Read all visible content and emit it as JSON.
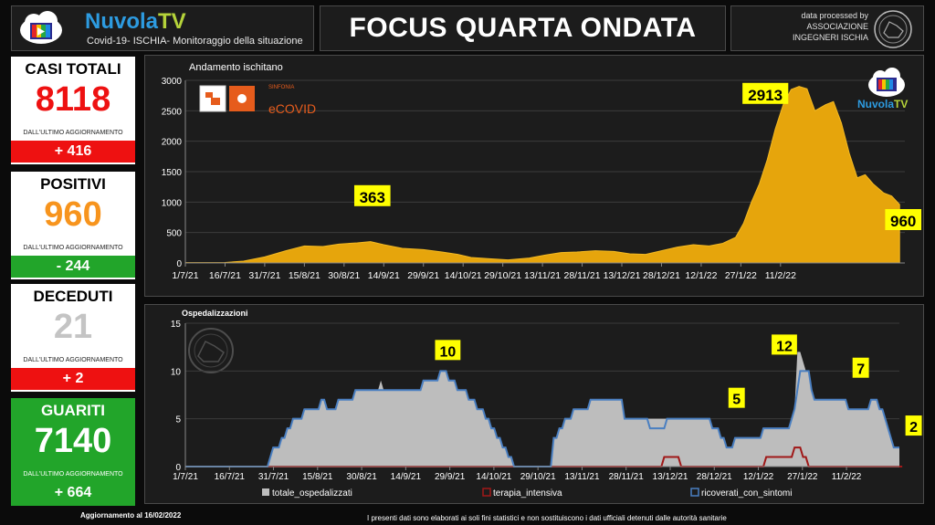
{
  "header": {
    "brand_a": "Nuvola",
    "brand_b": "TV",
    "brand_sub": "Covid-19- ISCHIA- Monitoraggio della situazione",
    "title": "FOCUS QUARTA ONDATA",
    "credit_line1": "data processed by",
    "credit_line2": "ASSOCIAZIONE",
    "credit_line3": "INGEGNERI ISCHIA"
  },
  "cards": [
    {
      "name": "CASI TOTALI",
      "value": "8118",
      "sub": "DALL'ULTIMO AGGIORNAMENTO",
      "delta": "+ 416",
      "value_color": "#ee1111",
      "delta_color": "#ee1111"
    },
    {
      "name": "POSITIVI",
      "value": "960",
      "sub": "DALL'ULTIMO AGGIORNAMENTO",
      "delta": "- 244",
      "value_color": "#f7941d",
      "delta_color": "#22a52a"
    },
    {
      "name": "DECEDUTI",
      "value": "21",
      "sub": "DALL'ULTIMO AGGIORNAMENTO",
      "delta": "+ 2",
      "value_color": "#c4c4c4",
      "delta_color": "#ee1111"
    },
    {
      "name": "GUARITI",
      "value": "7140",
      "sub": "DALL'ULTIMO AGGIORNAMENTO",
      "delta": "+ 664",
      "value_color": "#ffffff",
      "delta_color": "#22a52a",
      "bg": "#22a52a"
    }
  ],
  "footer": {
    "update": "Aggiornamento al  16/02/2022",
    "disclaimer": "I presenti dati sono elaborati ai soli fini statistici e non sostituiscono i dati ufficiali detenuti dalle autorità sanitarie"
  },
  "watermark": {
    "sinfonia": "SINFONIA",
    "ecovid": "eCOVID",
    "nuvola_a": "Nuvola",
    "nuvola_b": "TV"
  },
  "chart_data": [
    {
      "type": "area",
      "title": "Andamento ischitano",
      "x_labels": [
        "1/7/21",
        "16/7/21",
        "31/7/21",
        "15/8/21",
        "30/8/21",
        "14/9/21",
        "29/9/21",
        "14/10/21",
        "29/10/21",
        "13/11/21",
        "28/11/21",
        "13/12/21",
        "28/12/21",
        "12/1/22",
        "27/1/22",
        "11/2/22"
      ],
      "x_range_days": [
        0,
        230
      ],
      "ylim": [
        0,
        3000
      ],
      "yticks": [
        0,
        500,
        1000,
        1500,
        2000,
        2500,
        3000
      ],
      "series": [
        {
          "color": "#e6a50c",
          "points": [
            [
              0,
              5
            ],
            [
              15,
              8
            ],
            [
              22,
              30
            ],
            [
              30,
              100
            ],
            [
              38,
              200
            ],
            [
              45,
              280
            ],
            [
              52,
              270
            ],
            [
              58,
              310
            ],
            [
              65,
              330
            ],
            [
              70,
              350
            ],
            [
              75,
              300
            ],
            [
              82,
              240
            ],
            [
              90,
              220
            ],
            [
              97,
              180
            ],
            [
              103,
              140
            ],
            [
              108,
              90
            ],
            [
              115,
              70
            ],
            [
              122,
              50
            ],
            [
              130,
              80
            ],
            [
              136,
              130
            ],
            [
              142,
              170
            ],
            [
              148,
              180
            ],
            [
              155,
              200
            ],
            [
              162,
              190
            ],
            [
              168,
              150
            ],
            [
              174,
              140
            ],
            [
              180,
              200
            ],
            [
              186,
              260
            ],
            [
              192,
              300
            ],
            [
              198,
              280
            ],
            [
              203,
              320
            ],
            [
              208,
              420
            ],
            [
              211,
              650
            ],
            [
              214,
              1000
            ],
            [
              217,
              1300
            ],
            [
              220,
              1700
            ],
            [
              223,
              2200
            ],
            [
              226,
              2600
            ],
            [
              229,
              2850
            ],
            [
              232,
              2900
            ],
            [
              235,
              2860
            ],
            [
              238,
              2500
            ],
            [
              242,
              2600
            ],
            [
              245,
              2650
            ],
            [
              248,
              2300
            ],
            [
              251,
              1800
            ],
            [
              254,
              1400
            ],
            [
              257,
              1450
            ],
            [
              260,
              1300
            ],
            [
              264,
              1150
            ],
            [
              267,
              1100
            ],
            [
              270,
              960
            ]
          ],
          "x_unit": "days since 1/7/21"
        }
      ],
      "annotations": [
        {
          "text": "363",
          "x": 70,
          "y": 363
        },
        {
          "text": "2913",
          "x": 231,
          "y": 2913
        },
        {
          "text": "960",
          "x": 270,
          "y": 960
        }
      ]
    },
    {
      "type": "area",
      "title": "Ospedalizzazioni",
      "x_labels": [
        "1/7/21",
        "16/7/21",
        "31/7/21",
        "15/8/21",
        "30/8/21",
        "14/9/21",
        "29/9/21",
        "14/10/21",
        "29/10/21",
        "13/11/21",
        "28/11/21",
        "13/12/21",
        "28/12/21",
        "12/1/22",
        "27/1/22",
        "11/2/22"
      ],
      "ylim": [
        0,
        15
      ],
      "yticks": [
        0,
        5,
        10,
        15
      ],
      "legend": [
        "totale_ospedalizzati",
        "terapia_intensiva",
        "ricoverati_con_sintomi"
      ],
      "series": [
        {
          "name": "totale_ospedalizzati",
          "color": "#bdbdbd",
          "values": [
            0,
            0,
            0,
            0,
            0,
            0,
            0,
            0,
            0,
            0,
            0,
            0,
            0,
            0,
            0,
            0,
            0,
            0,
            0,
            0,
            0,
            0,
            0,
            0,
            0,
            0,
            0,
            0,
            0,
            0,
            1,
            2,
            2,
            2,
            3,
            3,
            4,
            4,
            5,
            5,
            5,
            5,
            6,
            6,
            6,
            6,
            6,
            6,
            7,
            7,
            6,
            6,
            6,
            6,
            7,
            7,
            7,
            7,
            7,
            7,
            8,
            8,
            8,
            8,
            8,
            8,
            8,
            8,
            8,
            9,
            8,
            8,
            8,
            8,
            8,
            8,
            8,
            8,
            8,
            8,
            8,
            8,
            8,
            8,
            9,
            9,
            9,
            9,
            9,
            9,
            10,
            10,
            10,
            9,
            9,
            9,
            8,
            8,
            8,
            8,
            7,
            7,
            7,
            6,
            6,
            6,
            5,
            5,
            4,
            4,
            3,
            3,
            2,
            2,
            1,
            1,
            0,
            0,
            0,
            0,
            0,
            0,
            0,
            0,
            0,
            0,
            0,
            0,
            0,
            0,
            3,
            3,
            4,
            4,
            5,
            5,
            5,
            6,
            6,
            6,
            6,
            6,
            6,
            7,
            7,
            7,
            7,
            7,
            7,
            7,
            7,
            7,
            7,
            7,
            7,
            5,
            5,
            5,
            5,
            5,
            5,
            5,
            5,
            5,
            5,
            5,
            5,
            5,
            5,
            5,
            5,
            5,
            5,
            5,
            5,
            5,
            5,
            5,
            5,
            5,
            5,
            5,
            5,
            5,
            5,
            5,
            4,
            4,
            4,
            3,
            3,
            2,
            2,
            2,
            3,
            3,
            3,
            3,
            3,
            3,
            3,
            3,
            3,
            3,
            4,
            4,
            4,
            4,
            4,
            4,
            4,
            4,
            4,
            4,
            5,
            6,
            12,
            12,
            11,
            10,
            10,
            8,
            7,
            7,
            7,
            7,
            7,
            7,
            7,
            7,
            7,
            7,
            7,
            7,
            6,
            6,
            6,
            6,
            6,
            6,
            6,
            6,
            7,
            7,
            7,
            6,
            6,
            5,
            4,
            3,
            2,
            2,
            2
          ]
        },
        {
          "name": "terapia_intensiva",
          "color": "#a01818",
          "values": [
            0,
            0,
            0,
            0,
            0,
            0,
            0,
            0,
            0,
            0,
            0,
            0,
            0,
            0,
            0,
            0,
            0,
            0,
            0,
            0,
            0,
            0,
            0,
            0,
            0,
            0,
            0,
            0,
            0,
            0,
            0,
            0,
            0,
            0,
            0,
            0,
            0,
            0,
            0,
            0,
            0,
            0,
            0,
            0,
            0,
            0,
            0,
            0,
            0,
            0,
            0,
            0,
            0,
            0,
            0,
            0,
            0,
            0,
            0,
            0,
            0,
            0,
            0,
            0,
            0,
            0,
            0,
            0,
            0,
            0,
            0,
            0,
            0,
            0,
            0,
            0,
            0,
            0,
            0,
            0,
            0,
            0,
            0,
            0,
            0,
            0,
            0,
            0,
            0,
            0,
            0,
            0,
            0,
            0,
            0,
            0,
            0,
            0,
            0,
            0,
            0,
            0,
            0,
            0,
            0,
            0,
            0,
            0,
            0,
            0,
            0,
            0,
            0,
            0,
            0,
            0,
            0,
            0,
            0,
            0,
            0,
            0,
            0,
            0,
            0,
            0,
            0,
            0,
            0,
            0,
            0,
            0,
            0,
            0,
            0,
            0,
            0,
            0,
            0,
            0,
            0,
            0,
            0,
            0,
            0,
            0,
            0,
            0,
            0,
            0,
            0,
            0,
            0,
            0,
            0,
            0,
            0,
            0,
            0,
            0,
            0,
            0,
            0,
            0,
            0,
            0,
            0,
            0,
            0,
            1,
            1,
            1,
            1,
            1,
            1,
            0,
            0,
            0,
            0,
            0,
            0,
            0,
            0,
            0,
            0,
            0,
            0,
            0,
            0,
            0,
            0,
            0,
            0,
            0,
            0,
            0,
            0,
            0,
            0,
            0,
            0,
            0,
            0,
            0,
            0,
            1,
            1,
            1,
            1,
            1,
            1,
            1,
            1,
            1,
            1,
            2,
            2,
            2,
            1,
            1,
            0,
            0,
            0,
            0,
            0,
            0,
            0,
            0,
            0,
            0,
            0,
            0,
            0,
            0,
            0,
            0,
            0,
            0,
            0,
            0,
            0,
            0,
            0,
            0,
            0,
            0,
            0,
            0,
            0,
            0,
            0,
            0,
            0,
            0
          ]
        },
        {
          "name": "ricoverati_con_sintomi",
          "color": "#4a7fc1",
          "values": [
            0,
            0,
            0,
            0,
            0,
            0,
            0,
            0,
            0,
            0,
            0,
            0,
            0,
            0,
            0,
            0,
            0,
            0,
            0,
            0,
            0,
            0,
            0,
            0,
            0,
            0,
            0,
            0,
            0,
            0,
            1,
            2,
            2,
            2,
            3,
            3,
            4,
            4,
            5,
            5,
            5,
            5,
            6,
            6,
            6,
            6,
            6,
            6,
            7,
            7,
            6,
            6,
            6,
            6,
            7,
            7,
            7,
            7,
            7,
            7,
            8,
            8,
            8,
            8,
            8,
            8,
            8,
            8,
            8,
            8,
            8,
            8,
            8,
            8,
            8,
            8,
            8,
            8,
            8,
            8,
            8,
            8,
            8,
            8,
            9,
            9,
            9,
            9,
            9,
            9,
            10,
            10,
            10,
            9,
            9,
            9,
            8,
            8,
            8,
            8,
            7,
            7,
            7,
            6,
            6,
            6,
            5,
            5,
            4,
            4,
            3,
            3,
            2,
            2,
            1,
            1,
            0,
            0,
            0,
            0,
            0,
            0,
            0,
            0,
            0,
            0,
            0,
            0,
            0,
            0,
            3,
            3,
            4,
            4,
            5,
            5,
            5,
            6,
            6,
            6,
            6,
            6,
            6,
            7,
            7,
            7,
            7,
            7,
            7,
            7,
            7,
            7,
            7,
            7,
            7,
            5,
            5,
            5,
            5,
            5,
            5,
            5,
            5,
            5,
            4,
            4,
            4,
            4,
            4,
            4,
            5,
            5,
            5,
            5,
            5,
            5,
            5,
            5,
            5,
            5,
            5,
            5,
            5,
            5,
            5,
            5,
            4,
            4,
            4,
            3,
            3,
            2,
            2,
            2,
            3,
            3,
            3,
            3,
            3,
            3,
            3,
            3,
            3,
            3,
            4,
            4,
            4,
            4,
            4,
            4,
            4,
            4,
            4,
            4,
            5,
            6,
            8,
            10,
            10,
            10,
            10,
            8,
            7,
            7,
            7,
            7,
            7,
            7,
            7,
            7,
            7,
            7,
            7,
            7,
            6,
            6,
            6,
            6,
            6,
            6,
            6,
            6,
            7,
            7,
            7,
            6,
            6,
            5,
            4,
            3,
            2,
            2,
            2
          ]
        }
      ],
      "annotations": [
        {
          "text": "10",
          "x": 91,
          "y": 10
        },
        {
          "text": "5",
          "x": 201,
          "y": 5
        },
        {
          "text": "12",
          "x": 213,
          "y": 12
        },
        {
          "text": "7",
          "x": 239,
          "y": 7
        },
        {
          "text": "2",
          "x": 248,
          "y": 2
        }
      ]
    }
  ]
}
